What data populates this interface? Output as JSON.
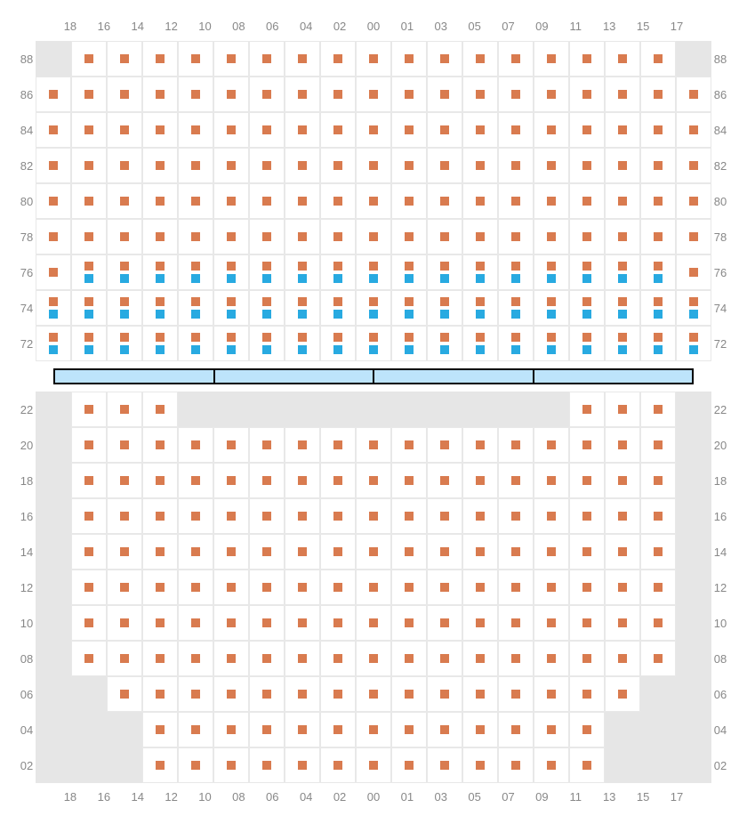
{
  "colors": {
    "seat_orange": "#d97b4f",
    "seat_blue": "#28aae1",
    "cell_empty": "#e6e6e6",
    "cell_border": "#e8e8e8",
    "label_text": "#888888",
    "divider_bg": "#bde4fb",
    "divider_border": "#000000",
    "background": "#ffffff"
  },
  "layout": {
    "cell_size": 40,
    "dot_size": 10,
    "dot_gap": 4,
    "label_fontsize": 13
  },
  "columns": [
    "18",
    "16",
    "14",
    "12",
    "10",
    "08",
    "06",
    "04",
    "02",
    "00",
    "01",
    "03",
    "05",
    "07",
    "09",
    "11",
    "13",
    "15",
    "17"
  ],
  "upper": {
    "rows": [
      "88",
      "86",
      "84",
      "82",
      "80",
      "78",
      "76",
      "74",
      "72"
    ],
    "cells": {
      "88": [
        "E",
        "O",
        "O",
        "O",
        "O",
        "O",
        "O",
        "O",
        "O",
        "O",
        "O",
        "O",
        "O",
        "O",
        "O",
        "O",
        "O",
        "O",
        "E"
      ],
      "86": [
        "O",
        "O",
        "O",
        "O",
        "O",
        "O",
        "O",
        "O",
        "O",
        "O",
        "O",
        "O",
        "O",
        "O",
        "O",
        "O",
        "O",
        "O",
        "O"
      ],
      "84": [
        "O",
        "O",
        "O",
        "O",
        "O",
        "O",
        "O",
        "O",
        "O",
        "O",
        "O",
        "O",
        "O",
        "O",
        "O",
        "O",
        "O",
        "O",
        "O"
      ],
      "82": [
        "O",
        "O",
        "O",
        "O",
        "O",
        "O",
        "O",
        "O",
        "O",
        "O",
        "O",
        "O",
        "O",
        "O",
        "O",
        "O",
        "O",
        "O",
        "O"
      ],
      "80": [
        "O",
        "O",
        "O",
        "O",
        "O",
        "O",
        "O",
        "O",
        "O",
        "O",
        "O",
        "O",
        "O",
        "O",
        "O",
        "O",
        "O",
        "O",
        "O"
      ],
      "78": [
        "O",
        "O",
        "O",
        "O",
        "O",
        "O",
        "O",
        "O",
        "O",
        "O",
        "O",
        "O",
        "O",
        "O",
        "O",
        "O",
        "O",
        "O",
        "O"
      ],
      "76": [
        "O",
        "OB",
        "OB",
        "OB",
        "OB",
        "OB",
        "OB",
        "OB",
        "OB",
        "OB",
        "OB",
        "OB",
        "OB",
        "OB",
        "OB",
        "OB",
        "OB",
        "OB",
        "O"
      ],
      "74": [
        "OB",
        "OB",
        "OB",
        "OB",
        "OB",
        "OB",
        "OB",
        "OB",
        "OB",
        "OB",
        "OB",
        "OB",
        "OB",
        "OB",
        "OB",
        "OB",
        "OB",
        "OB",
        "OB"
      ],
      "72": [
        "OB",
        "OB",
        "OB",
        "OB",
        "OB",
        "OB",
        "OB",
        "OB",
        "OB",
        "OB",
        "OB",
        "OB",
        "OB",
        "OB",
        "OB",
        "OB",
        "OB",
        "OB",
        "OB"
      ]
    }
  },
  "divider_segments": 4,
  "lower": {
    "rows": [
      "22",
      "20",
      "18",
      "16",
      "14",
      "12",
      "10",
      "08",
      "06",
      "04",
      "02"
    ],
    "cells": {
      "22": [
        "E",
        "O",
        "O",
        "O",
        "E",
        "E",
        "E",
        "E",
        "E",
        "E",
        "E",
        "E",
        "E",
        "E",
        "E",
        "O",
        "O",
        "O",
        "E"
      ],
      "20": [
        "E",
        "O",
        "O",
        "O",
        "O",
        "O",
        "O",
        "O",
        "O",
        "O",
        "O",
        "O",
        "O",
        "O",
        "O",
        "O",
        "O",
        "O",
        "E"
      ],
      "18": [
        "E",
        "O",
        "O",
        "O",
        "O",
        "O",
        "O",
        "O",
        "O",
        "O",
        "O",
        "O",
        "O",
        "O",
        "O",
        "O",
        "O",
        "O",
        "E"
      ],
      "16": [
        "E",
        "O",
        "O",
        "O",
        "O",
        "O",
        "O",
        "O",
        "O",
        "O",
        "O",
        "O",
        "O",
        "O",
        "O",
        "O",
        "O",
        "O",
        "E"
      ],
      "14": [
        "E",
        "O",
        "O",
        "O",
        "O",
        "O",
        "O",
        "O",
        "O",
        "O",
        "O",
        "O",
        "O",
        "O",
        "O",
        "O",
        "O",
        "O",
        "E"
      ],
      "12": [
        "E",
        "O",
        "O",
        "O",
        "O",
        "O",
        "O",
        "O",
        "O",
        "O",
        "O",
        "O",
        "O",
        "O",
        "O",
        "O",
        "O",
        "O",
        "E"
      ],
      "10": [
        "E",
        "O",
        "O",
        "O",
        "O",
        "O",
        "O",
        "O",
        "O",
        "O",
        "O",
        "O",
        "O",
        "O",
        "O",
        "O",
        "O",
        "O",
        "E"
      ],
      "08": [
        "E",
        "O",
        "O",
        "O",
        "O",
        "O",
        "O",
        "O",
        "O",
        "O",
        "O",
        "O",
        "O",
        "O",
        "O",
        "O",
        "O",
        "O",
        "E"
      ],
      "06": [
        "E",
        "E",
        "O",
        "O",
        "O",
        "O",
        "O",
        "O",
        "O",
        "O",
        "O",
        "O",
        "O",
        "O",
        "O",
        "O",
        "O",
        "E",
        "E"
      ],
      "04": [
        "E",
        "E",
        "E",
        "O",
        "O",
        "O",
        "O",
        "O",
        "O",
        "O",
        "O",
        "O",
        "O",
        "O",
        "O",
        "O",
        "E",
        "E",
        "E"
      ],
      "02": [
        "E",
        "E",
        "E",
        "O",
        "O",
        "O",
        "O",
        "O",
        "O",
        "O",
        "O",
        "O",
        "O",
        "O",
        "O",
        "O",
        "E",
        "E",
        "E"
      ]
    }
  }
}
